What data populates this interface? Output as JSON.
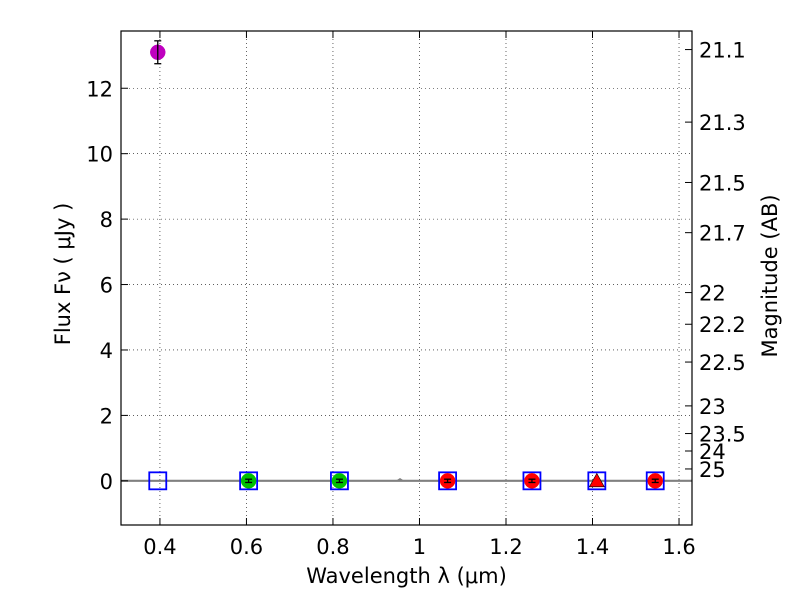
{
  "chart_data": {
    "type": "scatter",
    "xlabel": "Wavelength  λ (μm)",
    "ylabel": "Flux  Fν  ( μJy )",
    "ylabel_right": "Magnitude (AB)",
    "xlim": [
      0.31,
      1.63
    ],
    "ylim": [
      -1.35,
      13.75
    ],
    "grid": true,
    "x_ticks": [
      {
        "value": 0.4,
        "label": "0.4"
      },
      {
        "value": 0.6,
        "label": "0.6"
      },
      {
        "value": 0.8,
        "label": "0.8"
      },
      {
        "value": 1.0,
        "label": "1"
      },
      {
        "value": 1.2,
        "label": "1.2"
      },
      {
        "value": 1.4,
        "label": "1.4"
      },
      {
        "value": 1.6,
        "label": "1.6"
      }
    ],
    "y_ticks": [
      {
        "value": 0,
        "label": "0"
      },
      {
        "value": 2,
        "label": "2"
      },
      {
        "value": 4,
        "label": "4"
      },
      {
        "value": 6,
        "label": "6"
      },
      {
        "value": 8,
        "label": "8"
      },
      {
        "value": 10,
        "label": "10"
      },
      {
        "value": 12,
        "label": "12"
      }
    ],
    "mag_ticks": [
      {
        "label": "21.1"
      },
      {
        "label": "21.3"
      },
      {
        "label": "21.5"
      },
      {
        "label": "21.7"
      },
      {
        "label": "22"
      },
      {
        "label": "22.2"
      },
      {
        "label": "22.5"
      },
      {
        "label": "23"
      },
      {
        "label": "23.5"
      },
      {
        "label": "24"
      },
      {
        "label": "25"
      }
    ],
    "observed": [
      {
        "x": 0.395,
        "y": 13.1,
        "err": 0.35,
        "marker": "circle",
        "color": "#bf00bf"
      },
      {
        "x": 0.605,
        "y": 0.0,
        "err": 0.05,
        "marker": "circle",
        "color": "#00bf00"
      },
      {
        "x": 0.815,
        "y": 0.0,
        "err": 0.05,
        "marker": "circle",
        "color": "#00bf00"
      },
      {
        "x": 1.065,
        "y": 0.0,
        "err": 0.05,
        "marker": "circle",
        "color": "#ff0000"
      },
      {
        "x": 1.26,
        "y": 0.0,
        "err": 0.05,
        "marker": "circle",
        "color": "#ff0000"
      },
      {
        "x": 1.41,
        "y": 0.0,
        "err": 0.0,
        "marker": "triangle",
        "color": "#ff0000"
      },
      {
        "x": 1.545,
        "y": 0.0,
        "err": 0.05,
        "marker": "circle",
        "color": "#ff0000"
      }
    ],
    "model": [
      {
        "x": 0.395,
        "y": 0.0
      },
      {
        "x": 0.605,
        "y": 0.0
      },
      {
        "x": 0.815,
        "y": 0.0
      },
      {
        "x": 1.065,
        "y": 0.0
      },
      {
        "x": 1.26,
        "y": 0.0
      },
      {
        "x": 1.41,
        "y": 0.0
      },
      {
        "x": 1.545,
        "y": 0.0
      }
    ],
    "model_marker_color": "#0000ff",
    "template_line_color": "#808080",
    "spectrum_feature": {
      "x": 0.955,
      "y": 0.06
    }
  }
}
